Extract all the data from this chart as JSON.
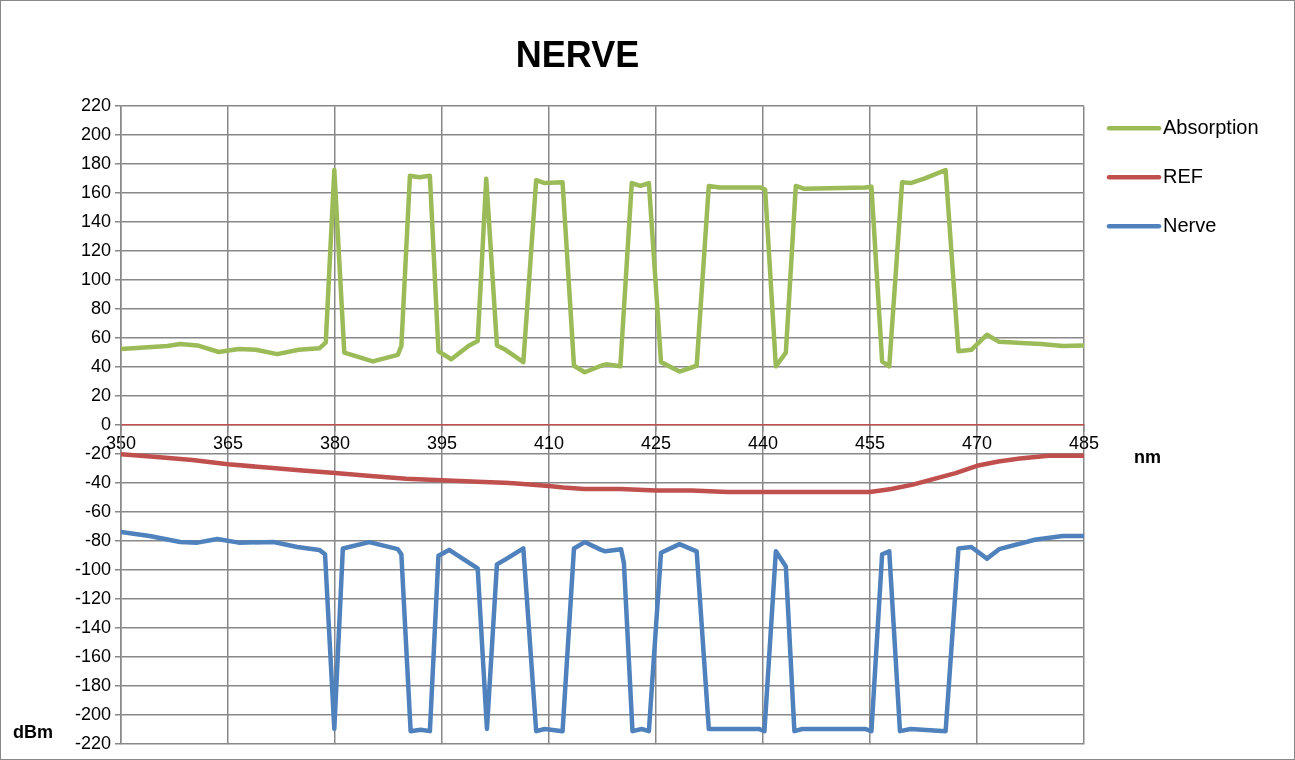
{
  "chart_data": {
    "type": "line",
    "title": "NERVE",
    "xlabel": "nm",
    "ylabel": "dBm",
    "xlim": [
      350,
      485
    ],
    "xticks": [
      350,
      365,
      380,
      395,
      410,
      425,
      440,
      455,
      470,
      485
    ],
    "ylim": [
      -220,
      220
    ],
    "yticks": [
      -220,
      -200,
      -180,
      -160,
      -140,
      -120,
      -100,
      -80,
      -60,
      -40,
      -20,
      0,
      20,
      40,
      60,
      80,
      100,
      120,
      140,
      160,
      180,
      200,
      220
    ],
    "grid": true,
    "legend": "right",
    "marker": "none",
    "line_style": "solid",
    "series": [
      {
        "name": "Absorption",
        "color": "#9bbb59",
        "x": [
          350,
          356.5,
          358.3,
          360.7,
          363.7,
          366.5,
          368.9,
          371.9,
          374.9,
          377.8,
          378.7,
          379.9,
          381.3,
          385.3,
          388.8,
          389.3,
          390.5,
          391.8,
          393.3,
          394.5,
          396.3,
          398.7,
          400,
          401.2,
          402.7,
          403.9,
          406.4,
          408.2,
          409.4,
          411.9,
          413.5,
          415,
          417.3,
          418,
          420,
          421.6,
          422.8,
          424,
          425.7,
          428.3,
          430.7,
          432.4,
          433.9,
          439.6,
          440.3,
          441.8,
          443.2,
          444.6,
          445.8,
          454.3,
          455.2,
          456.7,
          457.7,
          459.5,
          460.7,
          462.6,
          465.6,
          467.4,
          469.2,
          471.4,
          473.1,
          479,
          482,
          485
        ],
        "values": [
          52.5,
          54.6,
          56,
          55,
          50.5,
          52.5,
          52,
          49,
          52,
          53,
          57,
          176,
          50,
          44,
          48.5,
          54.6,
          172,
          171,
          172,
          51,
          45.5,
          54.6,
          58,
          170,
          55,
          52,
          43.5,
          169,
          167,
          167.5,
          41,
          36.5,
          41,
          42,
          40.6,
          167,
          165,
          167,
          43.5,
          37,
          41,
          165,
          164,
          164,
          162.5,
          40.6,
          50,
          165,
          163,
          164,
          164.5,
          44,
          40.6,
          167.5,
          167,
          170,
          176,
          51,
          52,
          62.4,
          57.5,
          56,
          54.6,
          55
        ]
      },
      {
        "name": "REF",
        "color": "#c0504d",
        "x": [
          350,
          355,
          360,
          365,
          370,
          375,
          380,
          385,
          390,
          395,
          400,
          405,
          410,
          412,
          415,
          420,
          425,
          430,
          435,
          440,
          445,
          450,
          455,
          458,
          461,
          464,
          467,
          470,
          473,
          476,
          480,
          485
        ],
        "values": [
          -20,
          -22,
          -24,
          -27,
          -29,
          -31,
          -33,
          -35,
          -37,
          -38,
          -39,
          -40,
          -42,
          -43,
          -44,
          -44,
          -45,
          -45,
          -46,
          -46,
          -46,
          -46,
          -46,
          -44,
          -41,
          -37,
          -33,
          -28,
          -25,
          -23,
          -21,
          -21
        ]
      },
      {
        "name": "Nerve",
        "color": "#4f81bd",
        "x": [
          350,
          354,
          358.3,
          360.7,
          363.5,
          366.5,
          371.4,
          374.7,
          377.8,
          378.6,
          379.9,
          381.1,
          384.8,
          388.8,
          389.3,
          390.6,
          392,
          393.3,
          394.5,
          396,
          398.7,
          400,
          401.3,
          402.7,
          403.9,
          406.4,
          408.2,
          409.4,
          411.9,
          413.5,
          415,
          417.3,
          417.9,
          420.1,
          420.5,
          421.7,
          423,
          424,
          425.7,
          428.3,
          430.7,
          432.4,
          433.6,
          439.4,
          440.2,
          441.8,
          443.2,
          444.4,
          445.5,
          454.3,
          455.2,
          456.7,
          457.7,
          459.2,
          460.7,
          465.6,
          467.4,
          469.2,
          471.4,
          473.1,
          478.1,
          482,
          485
        ],
        "values": [
          -73.6,
          -76.4,
          -80.6,
          -81,
          -78.5,
          -81,
          -80.6,
          -84,
          -86,
          -89,
          -209.5,
          -85,
          -80.6,
          -85.5,
          -89,
          -211,
          -210,
          -211,
          -90,
          -86,
          -94.6,
          -98.8,
          -209.5,
          -96,
          -92.5,
          -85,
          -211,
          -209.5,
          -211,
          -85,
          -80.6,
          -86,
          -87,
          -85.5,
          -95,
          -211,
          -209.5,
          -211,
          -88,
          -82,
          -87,
          -209.5,
          -209.5,
          -209.5,
          -211,
          -87,
          -97.4,
          -211,
          -209.5,
          -209.5,
          -211,
          -89,
          -87,
          -211,
          -209.5,
          -211,
          -85,
          -84,
          -92,
          -85.5,
          -79,
          -76.4,
          -76.4
        ]
      }
    ]
  }
}
